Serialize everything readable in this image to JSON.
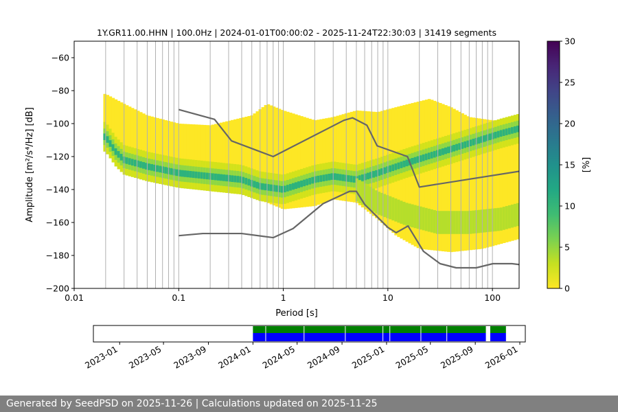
{
  "chart_data": {
    "type": "heatmap",
    "title": "1Y.GR11.00.HHN | 100.0Hz | 2024-01-01T00:00:02 - 2025-11-24T22:30:03 | 31419 segments",
    "xlabel": "Period [s]",
    "ylabel": "Amplitude [m²/s⁴/Hz] [dB]",
    "xscale": "log",
    "xlim": [
      0.01,
      180
    ],
    "ylim": [
      -200,
      -50
    ],
    "xticks": [
      0.01,
      0.1,
      1,
      10,
      100
    ],
    "xtick_labels": [
      "0.01",
      "0.1",
      "1",
      "10",
      "100"
    ],
    "yticks": [
      -200,
      -180,
      -160,
      -140,
      -120,
      -100,
      -80,
      -60
    ],
    "ytick_labels": [
      "−200",
      "−180",
      "−160",
      "−140",
      "−120",
      "−100",
      "−80",
      "−60"
    ],
    "period_gridlines": [
      0.02,
      0.03,
      0.04,
      0.05,
      0.06,
      0.07,
      0.08,
      0.09,
      0.1,
      0.2,
      0.3,
      0.4,
      0.5,
      0.6,
      0.7,
      0.8,
      0.9,
      1,
      2,
      3,
      4,
      5,
      6,
      7,
      8,
      9,
      10,
      20,
      30,
      40,
      50,
      60,
      70,
      80,
      90,
      100
    ],
    "colorbar": {
      "label": "[%]",
      "range": [
        0,
        30
      ],
      "ticks": [
        0,
        5,
        10,
        15,
        20,
        25,
        30
      ],
      "tick_labels": [
        "0",
        "5",
        "10",
        "15",
        "20",
        "25",
        "30"
      ]
    },
    "psd_upper_bound": [
      [
        0.02,
        -82
      ],
      [
        0.03,
        -88
      ],
      [
        0.05,
        -95
      ],
      [
        0.1,
        -100
      ],
      [
        0.2,
        -101
      ],
      [
        0.5,
        -95
      ],
      [
        0.7,
        -88
      ],
      [
        1,
        -92
      ],
      [
        2,
        -98
      ],
      [
        3,
        -96
      ],
      [
        5,
        -92
      ],
      [
        8,
        -93
      ],
      [
        12,
        -90
      ],
      [
        16,
        -88
      ],
      [
        25,
        -85
      ],
      [
        40,
        -90
      ],
      [
        60,
        -96
      ],
      [
        100,
        -98
      ],
      [
        180,
        -98
      ]
    ],
    "psd_lower_bound": [
      [
        0.02,
        -116
      ],
      [
        0.03,
        -128
      ],
      [
        0.05,
        -133
      ],
      [
        0.1,
        -138
      ],
      [
        0.2,
        -141
      ],
      [
        0.4,
        -143
      ],
      [
        0.7,
        -148
      ],
      [
        1,
        -152
      ],
      [
        2,
        -150
      ],
      [
        3,
        -146
      ],
      [
        5,
        -148
      ],
      [
        8,
        -158
      ],
      [
        12,
        -168
      ],
      [
        20,
        -176
      ],
      [
        40,
        -178
      ],
      [
        80,
        -176
      ],
      [
        180,
        -170
      ]
    ],
    "psd_mode": [
      [
        0.02,
        -108
      ],
      [
        0.025,
        -117
      ],
      [
        0.03,
        -122
      ],
      [
        0.05,
        -126
      ],
      [
        0.1,
        -130
      ],
      [
        0.2,
        -132
      ],
      [
        0.4,
        -134
      ],
      [
        0.6,
        -138
      ],
      [
        1,
        -140
      ],
      [
        2,
        -134
      ],
      [
        3,
        -132
      ],
      [
        5,
        -134
      ],
      [
        8,
        -130
      ],
      [
        15,
        -124
      ],
      [
        30,
        -118
      ],
      [
        60,
        -112
      ],
      [
        120,
        -106
      ],
      [
        180,
        -103
      ]
    ],
    "psd_secondary_mode": [
      [
        5,
        -140
      ],
      [
        8,
        -148
      ],
      [
        15,
        -155
      ],
      [
        30,
        -160
      ],
      [
        60,
        -160
      ],
      [
        120,
        -158
      ],
      [
        180,
        -155
      ]
    ],
    "noise_models": [
      {
        "name": "NHNM",
        "points": [
          [
            0.1,
            -91.5
          ],
          [
            0.22,
            -97.4
          ],
          [
            0.32,
            -110.5
          ],
          [
            0.8,
            -120
          ],
          [
            3.8,
            -98
          ],
          [
            4.6,
            -96.5
          ],
          [
            6.3,
            -101
          ],
          [
            7.9,
            -113.5
          ],
          [
            15.4,
            -120
          ],
          [
            20,
            -138.5
          ],
          [
            354.8,
            -126
          ]
        ]
      },
      {
        "name": "NLNM",
        "points": [
          [
            0.1,
            -168
          ],
          [
            0.17,
            -166.7
          ],
          [
            0.4,
            -166.7
          ],
          [
            0.8,
            -169.2
          ],
          [
            1.24,
            -163.7
          ],
          [
            2.4,
            -148.6
          ],
          [
            4.3,
            -141.1
          ],
          [
            5,
            -141.1
          ],
          [
            6,
            -149
          ],
          [
            10,
            -163
          ],
          [
            12,
            -166.2
          ],
          [
            15.6,
            -162.1
          ],
          [
            21.9,
            -177.5
          ],
          [
            31.6,
            -185
          ],
          [
            45,
            -187.5
          ],
          [
            70,
            -187.5
          ],
          [
            101,
            -185
          ],
          [
            154,
            -185
          ],
          [
            328,
            -187.5
          ]
        ]
      }
    ]
  },
  "timeline": {
    "xlim": [
      "2022-10-21",
      "2026-01-16"
    ],
    "ticks": [
      "2023-01-01",
      "2023-05-01",
      "2023-09-01",
      "2024-01-01",
      "2024-05-01",
      "2024-09-01",
      "2025-01-01",
      "2025-05-01",
      "2025-09-01",
      "2026-01-01"
    ],
    "tick_labels": [
      "2023-01",
      "2023-05",
      "2023-09",
      "2024-01",
      "2024-05",
      "2024-09",
      "2025-01",
      "2025-05",
      "2025-09",
      "2026-01"
    ],
    "availability_spans": [
      [
        "2024-01-01",
        "2025-09-30"
      ],
      [
        "2025-10-12",
        "2025-11-24"
      ]
    ],
    "gaps": [
      "2024-02-05",
      "2024-05-20",
      "2024-09-10",
      "2024-12-22",
      "2025-01-10",
      "2025-04-05",
      "2025-06-15"
    ],
    "colors": {
      "availability": "#008000",
      "segments": "#0000ff"
    }
  },
  "footer": {
    "text": "Generated by SeedPSD on 2025-11-26 | Calculations updated on 2025-11-25"
  }
}
